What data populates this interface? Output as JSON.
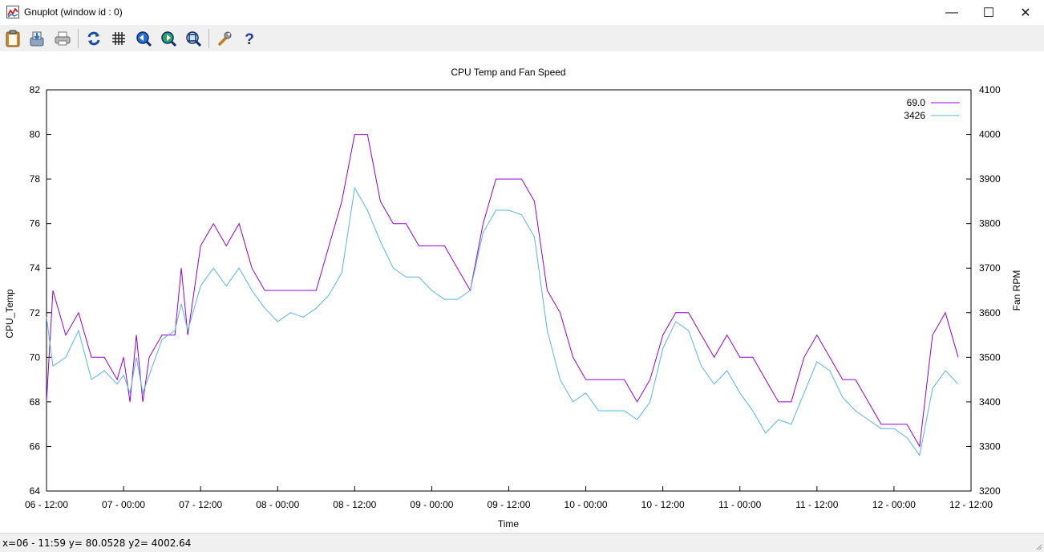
{
  "window": {
    "title": "Gnuplot (window id : 0)",
    "controls": {
      "minimize": "—",
      "maximize": "☐",
      "close": "✕"
    }
  },
  "toolbar": {
    "buttons": [
      {
        "name": "copy-to-clipboard",
        "icon": "clipboard-icon"
      },
      {
        "name": "save",
        "icon": "save-icon"
      },
      {
        "name": "print",
        "icon": "printer-icon"
      },
      {
        "name": "replot",
        "icon": "refresh-icon"
      },
      {
        "name": "toggle-grid",
        "icon": "grid-icon"
      },
      {
        "name": "zoom-previous",
        "icon": "zoom-prev-icon"
      },
      {
        "name": "zoom-next",
        "icon": "zoom-next-icon"
      },
      {
        "name": "autoscale",
        "icon": "zoom-fit-icon"
      },
      {
        "name": "options",
        "icon": "wrench-icon"
      },
      {
        "name": "help",
        "icon": "help-icon"
      }
    ]
  },
  "chart_data": {
    "type": "line",
    "title": "CPU Temp and Fan Speed",
    "xlabel": "Time",
    "ylabel": "CPU_Temp",
    "y2label": "Fan RPM",
    "x_tick_labels": [
      "06 - 12:00",
      "07 - 00:00",
      "07 - 12:00",
      "08 - 00:00",
      "08 - 12:00",
      "09 - 00:00",
      "09 - 12:00",
      "10 - 00:00",
      "10 - 12:00",
      "11 - 00:00",
      "11 - 12:00",
      "12 - 00:00",
      "12 - 12:00"
    ],
    "xlim_hours": [
      0,
      144
    ],
    "ylim": [
      64,
      82
    ],
    "y_ticks": [
      64,
      66,
      68,
      70,
      72,
      74,
      76,
      78,
      80,
      82
    ],
    "y2lim": [
      3200,
      4100
    ],
    "y2_ticks": [
      3200,
      3300,
      3400,
      3500,
      3600,
      3700,
      3800,
      3900,
      4000,
      4100
    ],
    "grid": false,
    "legend_position": "top-right",
    "series": [
      {
        "name": "69.0",
        "axis": "y",
        "color": "#9400d3",
        "points": [
          [
            0,
            68
          ],
          [
            1,
            73
          ],
          [
            3,
            71
          ],
          [
            5,
            72
          ],
          [
            7,
            70
          ],
          [
            9,
            70
          ],
          [
            11,
            69
          ],
          [
            12,
            70
          ],
          [
            13,
            68
          ],
          [
            14,
            71
          ],
          [
            15,
            68
          ],
          [
            16,
            70
          ],
          [
            18,
            71
          ],
          [
            20,
            71
          ],
          [
            21,
            74
          ],
          [
            22,
            71
          ],
          [
            24,
            75
          ],
          [
            26,
            76
          ],
          [
            28,
            75
          ],
          [
            30,
            76
          ],
          [
            32,
            74
          ],
          [
            34,
            73
          ],
          [
            36,
            73
          ],
          [
            38,
            73
          ],
          [
            40,
            73
          ],
          [
            42,
            73
          ],
          [
            44,
            75
          ],
          [
            46,
            77
          ],
          [
            48,
            80
          ],
          [
            50,
            80
          ],
          [
            52,
            77
          ],
          [
            54,
            76
          ],
          [
            56,
            76
          ],
          [
            58,
            75
          ],
          [
            60,
            75
          ],
          [
            62,
            75
          ],
          [
            64,
            74
          ],
          [
            66,
            73
          ],
          [
            68,
            76
          ],
          [
            70,
            78
          ],
          [
            72,
            78
          ],
          [
            74,
            78
          ],
          [
            76,
            77
          ],
          [
            78,
            73
          ],
          [
            80,
            72
          ],
          [
            82,
            70
          ],
          [
            84,
            69
          ],
          [
            86,
            69
          ],
          [
            88,
            69
          ],
          [
            90,
            69
          ],
          [
            92,
            68
          ],
          [
            94,
            69
          ],
          [
            96,
            71
          ],
          [
            98,
            72
          ],
          [
            100,
            72
          ],
          [
            102,
            71
          ],
          [
            104,
            70
          ],
          [
            106,
            71
          ],
          [
            108,
            70
          ],
          [
            110,
            70
          ],
          [
            112,
            69
          ],
          [
            114,
            68
          ],
          [
            116,
            68
          ],
          [
            118,
            70
          ],
          [
            120,
            71
          ],
          [
            122,
            70
          ],
          [
            124,
            69
          ],
          [
            126,
            69
          ],
          [
            128,
            68
          ],
          [
            130,
            67
          ],
          [
            132,
            67
          ],
          [
            134,
            67
          ],
          [
            136,
            66
          ],
          [
            138,
            71
          ],
          [
            140,
            72
          ],
          [
            142,
            70
          ]
        ]
      },
      {
        "name": "3426",
        "axis": "y2",
        "color": "#56b4e9",
        "points": [
          [
            0,
            3590
          ],
          [
            1,
            3480
          ],
          [
            3,
            3500
          ],
          [
            5,
            3560
          ],
          [
            7,
            3450
          ],
          [
            9,
            3470
          ],
          [
            11,
            3440
          ],
          [
            12,
            3460
          ],
          [
            13,
            3420
          ],
          [
            14,
            3500
          ],
          [
            15,
            3420
          ],
          [
            16,
            3460
          ],
          [
            18,
            3540
          ],
          [
            20,
            3560
          ],
          [
            21,
            3620
          ],
          [
            22,
            3560
          ],
          [
            24,
            3660
          ],
          [
            26,
            3700
          ],
          [
            28,
            3660
          ],
          [
            30,
            3700
          ],
          [
            32,
            3650
          ],
          [
            34,
            3610
          ],
          [
            36,
            3580
          ],
          [
            38,
            3600
          ],
          [
            40,
            3590
          ],
          [
            42,
            3610
          ],
          [
            44,
            3640
          ],
          [
            46,
            3690
          ],
          [
            48,
            3880
          ],
          [
            50,
            3830
          ],
          [
            52,
            3760
          ],
          [
            54,
            3700
          ],
          [
            56,
            3680
          ],
          [
            58,
            3680
          ],
          [
            60,
            3650
          ],
          [
            62,
            3630
          ],
          [
            64,
            3630
          ],
          [
            66,
            3650
          ],
          [
            68,
            3780
          ],
          [
            70,
            3830
          ],
          [
            72,
            3830
          ],
          [
            74,
            3820
          ],
          [
            76,
            3770
          ],
          [
            78,
            3560
          ],
          [
            80,
            3450
          ],
          [
            82,
            3400
          ],
          [
            84,
            3420
          ],
          [
            86,
            3380
          ],
          [
            88,
            3380
          ],
          [
            90,
            3380
          ],
          [
            92,
            3360
          ],
          [
            94,
            3400
          ],
          [
            96,
            3520
          ],
          [
            98,
            3580
          ],
          [
            100,
            3560
          ],
          [
            102,
            3480
          ],
          [
            104,
            3440
          ],
          [
            106,
            3470
          ],
          [
            108,
            3420
          ],
          [
            110,
            3380
          ],
          [
            112,
            3330
          ],
          [
            114,
            3360
          ],
          [
            116,
            3350
          ],
          [
            118,
            3420
          ],
          [
            120,
            3490
          ],
          [
            122,
            3470
          ],
          [
            124,
            3410
          ],
          [
            126,
            3380
          ],
          [
            128,
            3360
          ],
          [
            130,
            3340
          ],
          [
            132,
            3340
          ],
          [
            134,
            3320
          ],
          [
            136,
            3280
          ],
          [
            138,
            3430
          ],
          [
            140,
            3470
          ],
          [
            142,
            3440
          ]
        ]
      }
    ]
  },
  "status": {
    "text": "x=06 - 11:59 y= 80.0528 y2= 4002.64"
  }
}
